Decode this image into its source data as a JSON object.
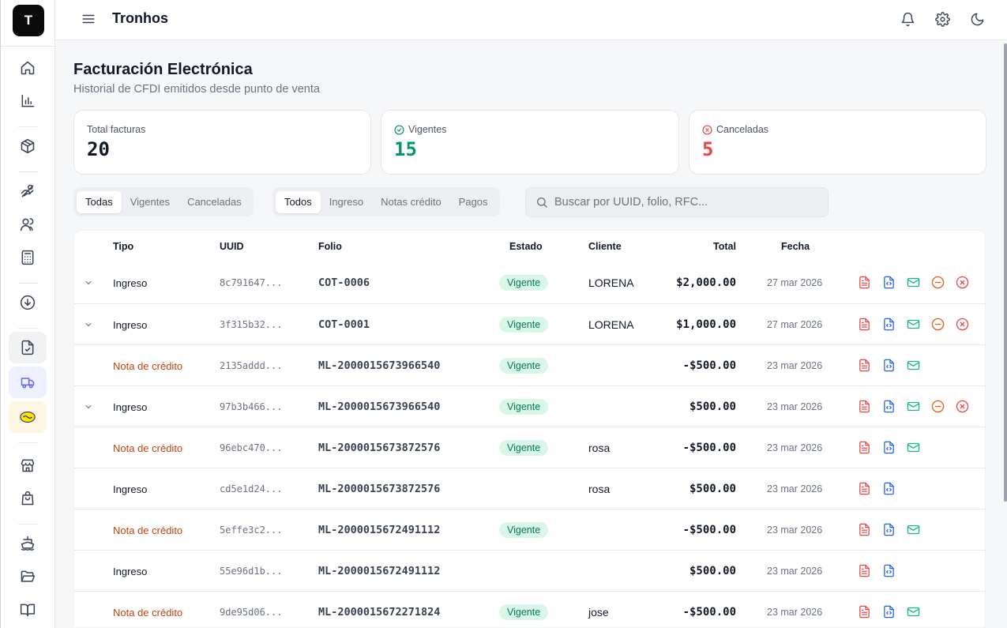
{
  "app": {
    "logo_letter": "T",
    "title": "Tronhos"
  },
  "page": {
    "title": "Facturación Electrónica",
    "subtitle": "Historial de CFDI emitidos desde punto de venta"
  },
  "stats": [
    {
      "label": "Total facturas",
      "value": "20",
      "color": "#111827",
      "icon": ""
    },
    {
      "label": "Vigentes",
      "value": "15",
      "color": "#059669",
      "icon": "check-circle-icon"
    },
    {
      "label": "Canceladas",
      "value": "5",
      "color": "#ef4444",
      "icon": "x-circle-icon"
    }
  ],
  "filters": {
    "status": [
      "Todas",
      "Vigentes",
      "Canceladas"
    ],
    "type": [
      "Todos",
      "Ingreso",
      "Notas crédito",
      "Pagos"
    ]
  },
  "search": {
    "placeholder": "Buscar por UUID, folio, RFC..."
  },
  "table": {
    "headers": [
      "Tipo",
      "UUID",
      "Folio",
      "Estado",
      "Cliente",
      "Total",
      "Fecha"
    ],
    "rows": [
      {
        "expand": true,
        "tipo": "Ingreso",
        "uuid": "8c791647...",
        "folio": "COT-0006",
        "estado": "Vigente",
        "cliente": "LORENA",
        "total": "$2,000.00",
        "fecha": "27 mar 2026",
        "actions": [
          "pdf",
          "xml",
          "email",
          "cancel",
          "delete"
        ]
      },
      {
        "expand": true,
        "tipo": "Ingreso",
        "uuid": "3f315b32...",
        "folio": "COT-0001",
        "estado": "Vigente",
        "cliente": "LORENA",
        "total": "$1,000.00",
        "fecha": "27 mar 2026",
        "actions": [
          "pdf",
          "xml",
          "email",
          "cancel",
          "delete"
        ]
      },
      {
        "expand": false,
        "tipo": "Nota de crédito",
        "uuid": "2135addd...",
        "folio": "ML-2000015673966540",
        "estado": "Vigente",
        "cliente": "",
        "total": "-$500.00",
        "fecha": "23 mar 2026",
        "actions": [
          "pdf",
          "xml",
          "email"
        ]
      },
      {
        "expand": true,
        "tipo": "Ingreso",
        "uuid": "97b3b466...",
        "folio": "ML-2000015673966540",
        "estado": "Vigente",
        "cliente": "",
        "total": "$500.00",
        "fecha": "23 mar 2026",
        "actions": [
          "pdf",
          "xml",
          "email",
          "cancel",
          "delete"
        ]
      },
      {
        "expand": false,
        "tipo": "Nota de crédito",
        "uuid": "96ebc470...",
        "folio": "ML-2000015673872576",
        "estado": "Vigente",
        "cliente": "rosa",
        "total": "-$500.00",
        "fecha": "23 mar 2026",
        "actions": [
          "pdf",
          "xml",
          "email"
        ]
      },
      {
        "expand": false,
        "tipo": "Ingreso",
        "uuid": "cd5e1d24...",
        "folio": "ML-2000015673872576",
        "estado": "",
        "cliente": "rosa",
        "total": "$500.00",
        "fecha": "23 mar 2026",
        "actions": [
          "pdf",
          "xml"
        ]
      },
      {
        "expand": false,
        "tipo": "Nota de crédito",
        "uuid": "5effe3c2...",
        "folio": "ML-2000015672491112",
        "estado": "Vigente",
        "cliente": "",
        "total": "-$500.00",
        "fecha": "23 mar 2026",
        "actions": [
          "pdf",
          "xml",
          "email"
        ]
      },
      {
        "expand": false,
        "tipo": "Ingreso",
        "uuid": "55e96d1b...",
        "folio": "ML-2000015672491112",
        "estado": "",
        "cliente": "",
        "total": "$500.00",
        "fecha": "23 mar 2026",
        "actions": [
          "pdf",
          "xml"
        ]
      },
      {
        "expand": false,
        "tipo": "Nota de crédito",
        "uuid": "9de95d06...",
        "folio": "ML-2000015672271824",
        "estado": "Vigente",
        "cliente": "jose",
        "total": "-$500.00",
        "fecha": "23 mar 2026",
        "actions": [
          "pdf",
          "xml",
          "email"
        ]
      }
    ]
  },
  "colors": {
    "accent": "#6366f1",
    "success": "#059669",
    "danger": "#ef4444",
    "warning": "#ea580c",
    "info": "#2563eb",
    "email": "#10b981",
    "nota": "#c2410c"
  }
}
